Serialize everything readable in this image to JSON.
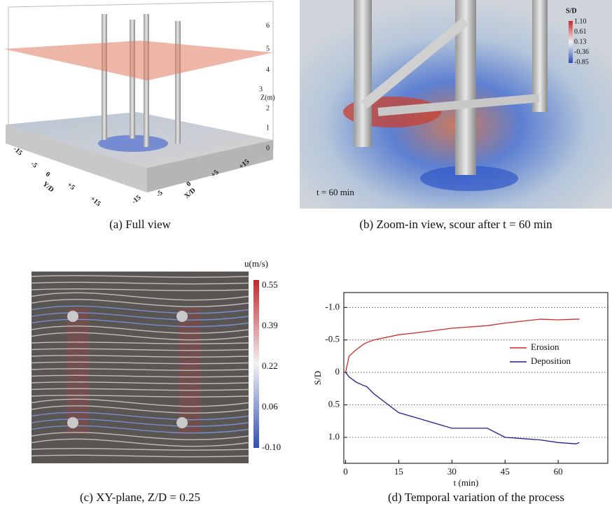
{
  "panels": [
    {
      "caption": "(a) Full view",
      "z_ticks": [
        "6",
        "5",
        "4",
        "3",
        "2",
        "1",
        "0"
      ],
      "z_label": "Z(m)",
      "y_ticks": [
        "-15",
        "-5",
        "0",
        "+5",
        "+15"
      ],
      "y_label": "Y/D",
      "x_ticks": [
        "-15",
        "-5",
        "0",
        "+5",
        "+15"
      ],
      "x_label": "X/D"
    },
    {
      "caption": "(b) Zoom-in view, scour after t = 60 min",
      "colorbar_title": "S/D",
      "colorbar_ticks": [
        "1.10",
        "0.61",
        "0.13",
        "-0.36",
        "-0.85"
      ],
      "annotation": "t = 60 min"
    },
    {
      "caption": "(c) XY-plane, Z/D = 0.25",
      "colorbar_title": "u(m/s)",
      "colorbar_ticks": [
        "0.55",
        "0.39",
        "0.22",
        "0.06",
        "-0.10"
      ]
    },
    {
      "caption": "(d) Temporal variation of the process"
    }
  ],
  "chart_data": {
    "type": "line",
    "x_label": "t (min)",
    "y_label": "S/D",
    "x": [
      0,
      1,
      3,
      5,
      6,
      8,
      15,
      20,
      30,
      40,
      45,
      55,
      60,
      65,
      66
    ],
    "series": [
      {
        "name": "Erosion",
        "color": "#d62728",
        "values": [
          0,
          -0.25,
          -0.35,
          -0.43,
          -0.46,
          -0.5,
          -0.58,
          -0.61,
          -0.68,
          -0.72,
          -0.76,
          -0.82,
          -0.81,
          -0.82,
          -0.82
        ]
      },
      {
        "name": "Deposition",
        "color": "#1f1f8f",
        "values": [
          0,
          0.07,
          0.15,
          0.2,
          0.22,
          0.33,
          0.62,
          0.7,
          0.86,
          0.86,
          1.0,
          1.04,
          1.08,
          1.1,
          1.08
        ]
      }
    ],
    "xlim": [
      -0.5,
      74
    ],
    "xticks": [
      0,
      15,
      30,
      45,
      60
    ],
    "ylim": [
      -1.23,
      1.4
    ],
    "y_inverted": true,
    "yticks": [
      {
        "value": -1.0,
        "label": "-1.0"
      },
      {
        "value": -0.5,
        "label": "-0.5"
      },
      0,
      0.5,
      {
        "value": 1.0,
        "label": "1.0"
      }
    ],
    "grid": true,
    "legend": "right"
  }
}
